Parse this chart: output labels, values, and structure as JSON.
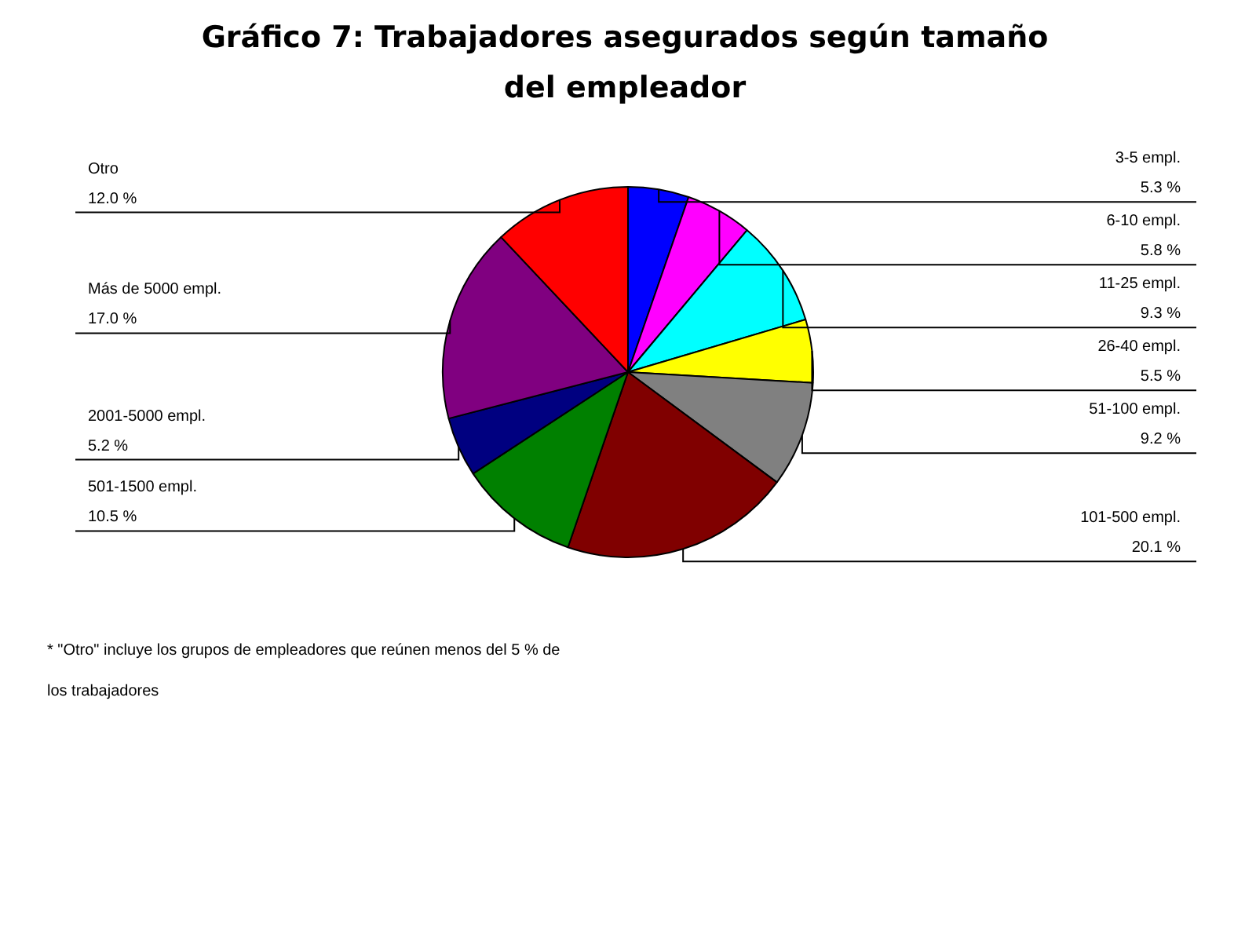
{
  "chart_data": {
    "type": "pie",
    "title": "Gráfico 7: Trabajadores asegurados según tamaño del empleador",
    "categories": [
      "3-5 empl.",
      "6-10 empl.",
      "11-25 empl.",
      "26-40 empl.",
      "51-100 empl.",
      "101-500 empl.",
      "501-1500 empl.",
      "2001-5000 empl.",
      "Más de 5000 empl.",
      "Otro"
    ],
    "values": [
      5.3,
      5.8,
      9.3,
      5.5,
      9.2,
      20.1,
      10.5,
      5.2,
      17.0,
      12.0
    ],
    "value_labels": [
      "5.3 %",
      "5.8 %",
      "9.3 %",
      "5.5 %",
      "9.2 %",
      "20.1 %",
      "10.5 %",
      "5.2 %",
      "17.0 %",
      "12.0 %"
    ],
    "colors": [
      "#0000ff",
      "#ff00ff",
      "#00ffff",
      "#ffff00",
      "#808080",
      "#800000",
      "#008000",
      "#000080",
      "#800080",
      "#ff0000"
    ],
    "legend": false,
    "annotations": [
      "* \"Otro\" incluye los grupos de empleadores que reúnen menos del 5 % de los trabajadores"
    ]
  }
}
